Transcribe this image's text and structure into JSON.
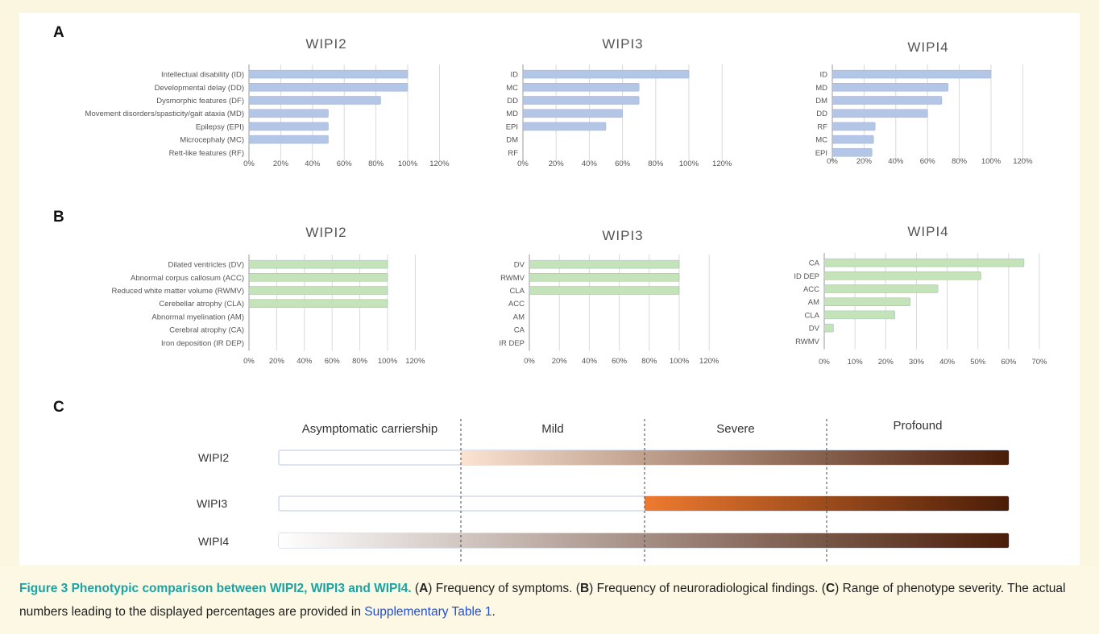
{
  "panels": {
    "a": "A",
    "b": "B",
    "c": "C"
  },
  "xtick_labels_100": [
    "0%",
    "20%",
    "40%",
    "60%",
    "80%",
    "100%",
    "120%"
  ],
  "xtick_labels_70": [
    "0%",
    "10%",
    "20%",
    "30%",
    "40%",
    "50%",
    "60%",
    "70%"
  ],
  "chart_data": [
    {
      "id": "A-WIPI2",
      "type": "bar",
      "orientation": "horizontal",
      "title": "WIPI2",
      "categories": [
        "Intellectual disability (ID)",
        "Developmental delay (DD)",
        "Dysmorphic features (DF)",
        "Movement disorders/spasticity/gait ataxia (MD)",
        "Epilepsy (EPI)",
        "Microcephaly (MC)",
        "Rett-like features (RF)"
      ],
      "values": [
        100,
        100,
        83,
        50,
        50,
        50,
        0
      ],
      "xlim": [
        0,
        120
      ],
      "color": "#b4c6e6"
    },
    {
      "id": "A-WIPI3",
      "type": "bar",
      "orientation": "horizontal",
      "title": "WIPI3",
      "categories": [
        "ID",
        "MC",
        "DD",
        "MD",
        "EPI",
        "DM",
        "RF"
      ],
      "values": [
        100,
        70,
        70,
        60,
        50,
        0,
        0
      ],
      "xlim": [
        0,
        120
      ],
      "color": "#b4c6e6"
    },
    {
      "id": "A-WIPI4",
      "type": "bar",
      "orientation": "horizontal",
      "title": "WIPI4",
      "categories": [
        "ID",
        "MD",
        "DM",
        "DD",
        "RF",
        "MC",
        "EPI"
      ],
      "values": [
        100,
        73,
        69,
        60,
        27,
        26,
        25
      ],
      "xlim": [
        0,
        120
      ],
      "color": "#b4c6e6"
    },
    {
      "id": "B-WIPI2",
      "type": "bar",
      "orientation": "horizontal",
      "title": "WIPI2",
      "categories": [
        "Dilated ventricles (DV)",
        "Abnormal corpus callosum (ACC)",
        "Reduced white matter volume (RWMV)",
        "Cerebellar atrophy (CLA)",
        "Abnormal myelination (AM)",
        "Cerebral atrophy (CA)",
        "Iron deposition (IR DEP)"
      ],
      "values": [
        100,
        100,
        100,
        100,
        0,
        0,
        0
      ],
      "xlim": [
        0,
        120
      ],
      "color": "#c5e3b9"
    },
    {
      "id": "B-WIPI3",
      "type": "bar",
      "orientation": "horizontal",
      "title": "WIPI3",
      "categories": [
        "DV",
        "RWMV",
        "CLA",
        "ACC",
        "AM",
        "CA",
        "IR DEP"
      ],
      "values": [
        100,
        100,
        100,
        0,
        0,
        0,
        0
      ],
      "xlim": [
        0,
        120
      ],
      "color": "#c5e3b9"
    },
    {
      "id": "B-WIPI4",
      "type": "bar",
      "orientation": "horizontal",
      "title": "WIPI4",
      "categories": [
        "CA",
        "ID DEP",
        "ACC",
        "AM",
        "CLA",
        "DV",
        "RWMV"
      ],
      "values": [
        65,
        51,
        37,
        28,
        23,
        3,
        0
      ],
      "xlim": [
        0,
        70
      ],
      "color": "#c5e3b9"
    }
  ],
  "severity": {
    "levels": [
      "Asymptomatic carriership",
      "Mild",
      "Severe",
      "Profound"
    ],
    "rows": [
      {
        "label": "WIPI2",
        "range": [
          1,
          3
        ]
      },
      {
        "label": "WIPI3",
        "range": [
          2,
          3
        ]
      },
      {
        "label": "WIPI4",
        "range": [
          0,
          3
        ]
      }
    ],
    "colors": {
      "light": "#fbe3d2",
      "orange": "#ee7a2f",
      "brown": "#a8461a",
      "dark": "#4a1d08"
    }
  },
  "caption": {
    "title": "Figure 3 Phenotypic comparison between WIPI2, WIPI3 and WIPI4.",
    "p1": " (",
    "a": "A",
    "p2": ") Frequency of symptoms. (",
    "b": "B",
    "p3": ") Frequency of neuroradiological findings. (",
    "c": "C",
    "p4": ") Range of phenotype severity. The actual numbers leading to the displayed percentages are provided in ",
    "link": "Supplementary Table 1",
    "p5": "."
  }
}
